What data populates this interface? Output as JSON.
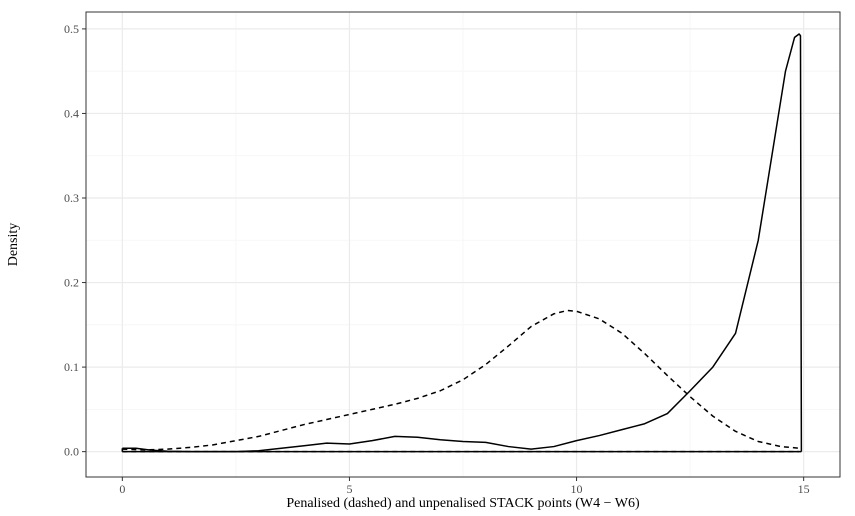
{
  "chart_data": {
    "type": "line",
    "title": "",
    "xlabel": "Penalised (dashed) and unpenalised STACK points (W4 − W6)",
    "ylabel": "Density",
    "xlim": [
      -0.8,
      15.8
    ],
    "ylim": [
      -0.03,
      0.52
    ],
    "x_ticks": [
      0,
      5,
      10,
      15
    ],
    "x_tick_labels": [
      "0",
      "5",
      "10",
      "15"
    ],
    "y_ticks": [
      0.0,
      0.1,
      0.2,
      0.3,
      0.4,
      0.5
    ],
    "y_tick_labels": [
      "0.0",
      "0.1",
      "0.2",
      "0.3",
      "0.4",
      "0.5"
    ],
    "x_minor_ticks": [
      2.5,
      7.5,
      12.5
    ],
    "y_minor_ticks": [
      0.05,
      0.15,
      0.25,
      0.35,
      0.45
    ],
    "grid": true,
    "legend": "none",
    "colors": {
      "background": "#ffffff",
      "grid_major": "#ebebeb",
      "grid_minor": "#f5f5f5",
      "line": "#000000",
      "border": "#333333",
      "tick_text": "#4d4d4d"
    },
    "series": [
      {
        "style": "dashed",
        "x": [
          0,
          0.5,
          1,
          1.5,
          2,
          2.5,
          3,
          3.5,
          4,
          4.5,
          5,
          5.5,
          6,
          6.5,
          7,
          7.5,
          8,
          8.5,
          9,
          9.5,
          9.8,
          10,
          10.5,
          11,
          11.5,
          12,
          12.5,
          13,
          13.5,
          14,
          14.5,
          14.9
        ],
        "y": [
          0.003,
          0.002,
          0.003,
          0.005,
          0.008,
          0.013,
          0.018,
          0.025,
          0.032,
          0.038,
          0.044,
          0.05,
          0.056,
          0.063,
          0.072,
          0.085,
          0.103,
          0.125,
          0.148,
          0.163,
          0.167,
          0.166,
          0.157,
          0.14,
          0.116,
          0.09,
          0.065,
          0.042,
          0.024,
          0.012,
          0.006,
          0.004
        ]
      },
      {
        "style": "solid",
        "x": [
          0,
          0.3,
          0.6,
          1,
          1.5,
          2,
          2.5,
          3,
          3.5,
          4,
          4.5,
          5,
          5.5,
          6,
          6.5,
          7,
          7.5,
          8,
          8.5,
          9,
          9.5,
          10,
          10.5,
          11,
          11.5,
          12,
          12.5,
          13,
          13.5,
          14,
          14.3,
          14.6,
          14.8,
          14.9,
          14.93,
          14.95
        ],
        "y": [
          0.004,
          0.004,
          0.002,
          0.0005,
          0.0,
          0.0,
          0.0,
          0.001,
          0.004,
          0.007,
          0.01,
          0.009,
          0.013,
          0.018,
          0.017,
          0.014,
          0.012,
          0.011,
          0.006,
          0.003,
          0.006,
          0.013,
          0.019,
          0.026,
          0.033,
          0.045,
          0.072,
          0.1,
          0.14,
          0.25,
          0.35,
          0.45,
          0.49,
          0.494,
          0.492,
          0.0
        ]
      }
    ]
  }
}
